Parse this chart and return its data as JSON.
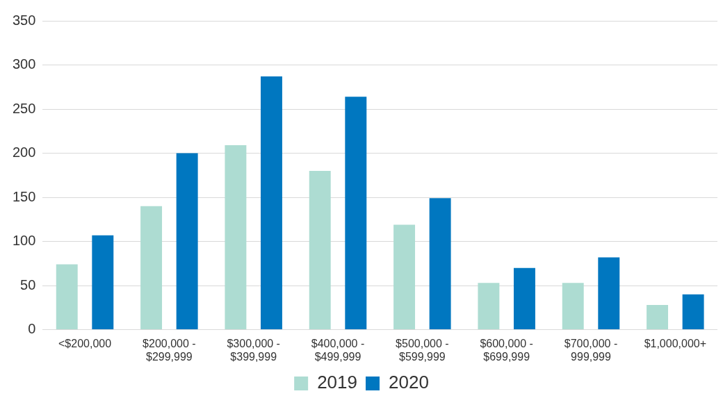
{
  "chart_data": {
    "type": "bar",
    "categories": [
      "<$200,000",
      "$200,000 -\n$299,999",
      "$300,000 -\n$399,999",
      "$400,000 -\n$499,999",
      "$500,000 -\n$599,999",
      "$600,000 -\n$699,999",
      "$700,000 -\n999,999",
      "$1,000,000+"
    ],
    "series": [
      {
        "name": "2019",
        "color": "#addcd2",
        "values": [
          74,
          140,
          209,
          180,
          119,
          53,
          53,
          28
        ]
      },
      {
        "name": "2020",
        "color": "#0077c0",
        "values": [
          107,
          200,
          287,
          264,
          149,
          70,
          82,
          40
        ]
      }
    ],
    "ylim": [
      0,
      350
    ],
    "yticks": [
      0,
      50,
      100,
      150,
      200,
      250,
      300,
      350
    ],
    "grid": "y",
    "legend": "bottom"
  }
}
